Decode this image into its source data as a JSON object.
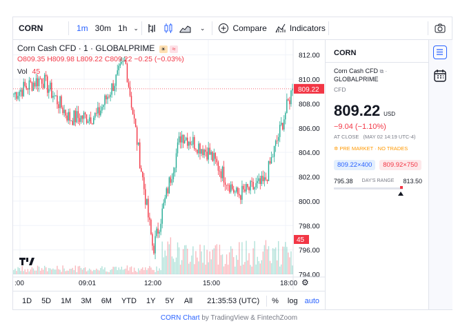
{
  "toolbar": {
    "symbol": "CORN",
    "intervals": [
      "1m",
      "30m",
      "1h"
    ],
    "active_interval": "1m",
    "compare_label": "Compare",
    "indicators_label": "Indicators"
  },
  "legend": {
    "title": "Corn Cash CFD · 1 · GLOBALPRIME",
    "open": "O809.35",
    "high": "H809.98",
    "low": "L809.22",
    "close": "C809.22",
    "change": "−0.25 (−0.03%)",
    "vol_label": "Vol",
    "vol_value": "45"
  },
  "price_axis": [
    "812.00",
    "810.00",
    "808.00",
    "806.00",
    "804.00",
    "802.00",
    "800.00",
    "798.00",
    "796.00",
    "794.00"
  ],
  "price_tag": "809.22",
  "volume_tag": "45",
  "time_axis": [
    ":00",
    "09:01",
    "12:00",
    "15:00",
    "18:00"
  ],
  "ranges": [
    "1D",
    "5D",
    "1M",
    "3M",
    "6M",
    "YTD",
    "1Y",
    "5Y",
    "All"
  ],
  "clock": "21:35:53 (UTC)",
  "scale_opts": {
    "pct": "%",
    "log": "log",
    "auto": "auto"
  },
  "side": {
    "symbol": "CORN",
    "name": "Corn Cash CFD",
    "exchange": "GLOBALPRIME",
    "type": "CFD",
    "price": "809.22",
    "currency": "USD",
    "change": "−9.04 (−1.10%)",
    "at_close": "AT CLOSE",
    "close_time": "(MAY 02 14:19 UTC-4)",
    "premarket": "PRE MARKET · NO TRADES",
    "bid": "809.22×400",
    "ask": "809.92×750",
    "range_low": "795.38",
    "range_label": "DAY'S RANGE",
    "range_high": "813.50"
  },
  "footer": {
    "link": "CORN Chart",
    "rest": "by TradingView & FintechZoom"
  },
  "colors": {
    "up": "#22ab94",
    "down": "#f23645",
    "accent": "#2962ff"
  },
  "chart_data": {
    "type": "candlestick",
    "interval": "1m",
    "x": [
      "09:01",
      "10:00",
      "11:00",
      "12:00",
      "12:30",
      "13:00",
      "14:00",
      "15:00",
      "16:00",
      "17:00",
      "18:00"
    ],
    "close": [
      808.8,
      810.1,
      806.8,
      807.0,
      811.5,
      796.0,
      805.5,
      804.0,
      800.5,
      801.5,
      809.22
    ],
    "ylim": [
      794,
      813
    ]
  }
}
